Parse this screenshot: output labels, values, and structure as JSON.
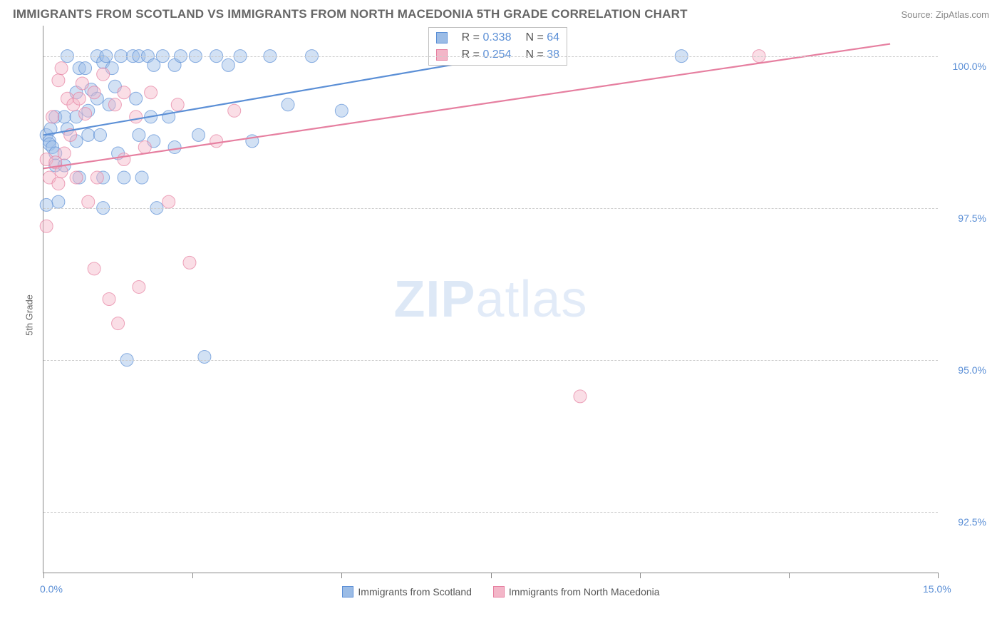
{
  "title": "IMMIGRANTS FROM SCOTLAND VS IMMIGRANTS FROM NORTH MACEDONIA 5TH GRADE CORRELATION CHART",
  "source_prefix": "Source: ",
  "source_name": "ZipAtlas.com",
  "y_axis_label": "5th Grade",
  "watermark_a": "ZIP",
  "watermark_b": "atlas",
  "chart": {
    "type": "scatter",
    "background_color": "#ffffff",
    "grid_color": "#cccccc",
    "axis_color": "#888888",
    "text_muted": "#666666",
    "value_color": "#5b8fd6",
    "xlim": [
      0.0,
      15.0
    ],
    "ylim": [
      91.5,
      100.5
    ],
    "x_ticks": [
      0.0,
      2.5,
      5.0,
      7.5,
      10.0,
      12.5,
      15.0
    ],
    "x_tick_labels_shown": {
      "0": "0.0%",
      "15": "15.0%"
    },
    "y_ticks": [
      92.5,
      95.0,
      97.5,
      100.0
    ],
    "y_tick_labels": [
      "92.5%",
      "95.0%",
      "97.5%",
      "100.0%"
    ],
    "marker_radius": 9,
    "marker_opacity": 0.45,
    "line_width": 2.2,
    "series": [
      {
        "key": "scotland",
        "label": "Immigrants from Scotland",
        "color": "#5b8fd6",
        "fill": "#9bbce6",
        "R": 0.338,
        "N": 64,
        "trend": {
          "x1": 0.0,
          "y1": 98.7,
          "x2": 8.3,
          "y2": 100.1
        },
        "points": [
          [
            0.05,
            98.7
          ],
          [
            0.1,
            98.6
          ],
          [
            0.12,
            98.8
          ],
          [
            0.1,
            98.55
          ],
          [
            0.15,
            98.5
          ],
          [
            0.2,
            99.0
          ],
          [
            0.2,
            98.4
          ],
          [
            0.2,
            98.2
          ],
          [
            0.25,
            97.6
          ],
          [
            0.05,
            97.55
          ],
          [
            0.35,
            99.0
          ],
          [
            0.4,
            100.0
          ],
          [
            0.4,
            98.8
          ],
          [
            0.35,
            98.2
          ],
          [
            0.55,
            99.4
          ],
          [
            0.55,
            99.0
          ],
          [
            0.6,
            98.0
          ],
          [
            0.6,
            99.8
          ],
          [
            0.55,
            98.6
          ],
          [
            0.7,
            99.8
          ],
          [
            0.75,
            99.1
          ],
          [
            0.75,
            98.7
          ],
          [
            0.8,
            99.45
          ],
          [
            0.9,
            100.0
          ],
          [
            0.9,
            99.3
          ],
          [
            0.95,
            98.7
          ],
          [
            1.0,
            99.9
          ],
          [
            1.0,
            98.0
          ],
          [
            1.0,
            97.5
          ],
          [
            1.05,
            100.0
          ],
          [
            1.1,
            99.2
          ],
          [
            1.15,
            99.8
          ],
          [
            1.2,
            99.5
          ],
          [
            1.25,
            98.4
          ],
          [
            1.3,
            100.0
          ],
          [
            1.35,
            98.0
          ],
          [
            1.4,
            95.0
          ],
          [
            1.5,
            100.0
          ],
          [
            1.55,
            99.3
          ],
          [
            1.6,
            100.0
          ],
          [
            1.6,
            98.7
          ],
          [
            1.65,
            98.0
          ],
          [
            1.75,
            100.0
          ],
          [
            1.8,
            99.0
          ],
          [
            1.85,
            99.85
          ],
          [
            1.85,
            98.6
          ],
          [
            1.9,
            97.5
          ],
          [
            2.0,
            100.0
          ],
          [
            2.1,
            99.0
          ],
          [
            2.2,
            99.85
          ],
          [
            2.2,
            98.5
          ],
          [
            2.3,
            100.0
          ],
          [
            2.55,
            100.0
          ],
          [
            2.6,
            98.7
          ],
          [
            2.7,
            95.05
          ],
          [
            2.9,
            100.0
          ],
          [
            3.1,
            99.85
          ],
          [
            3.3,
            100.0
          ],
          [
            3.5,
            98.6
          ],
          [
            3.8,
            100.0
          ],
          [
            4.1,
            99.2
          ],
          [
            4.5,
            100.0
          ],
          [
            5.0,
            99.1
          ],
          [
            10.7,
            100.0
          ]
        ]
      },
      {
        "key": "nmacedonia",
        "label": "Immigrants from North Macedonia",
        "color": "#e67fa0",
        "fill": "#f3b6c8",
        "R": 0.254,
        "N": 38,
        "trend": {
          "x1": 0.0,
          "y1": 98.15,
          "x2": 14.2,
          "y2": 100.2
        },
        "points": [
          [
            0.05,
            98.3
          ],
          [
            0.05,
            97.2
          ],
          [
            0.1,
            98.0
          ],
          [
            0.15,
            99.0
          ],
          [
            0.2,
            98.25
          ],
          [
            0.25,
            97.9
          ],
          [
            0.25,
            99.6
          ],
          [
            0.3,
            98.1
          ],
          [
            0.3,
            99.8
          ],
          [
            0.35,
            98.4
          ],
          [
            0.4,
            99.3
          ],
          [
            0.45,
            98.7
          ],
          [
            0.5,
            99.2
          ],
          [
            0.55,
            98.0
          ],
          [
            0.6,
            99.3
          ],
          [
            0.65,
            99.55
          ],
          [
            0.7,
            99.05
          ],
          [
            0.75,
            97.6
          ],
          [
            0.85,
            99.4
          ],
          [
            0.85,
            96.5
          ],
          [
            0.9,
            98.0
          ],
          [
            1.0,
            99.7
          ],
          [
            1.1,
            96.0
          ],
          [
            1.2,
            99.2
          ],
          [
            1.25,
            95.6
          ],
          [
            1.35,
            99.4
          ],
          [
            1.35,
            98.3
          ],
          [
            1.55,
            99.0
          ],
          [
            1.6,
            96.2
          ],
          [
            1.7,
            98.5
          ],
          [
            1.8,
            99.4
          ],
          [
            2.1,
            97.6
          ],
          [
            2.25,
            99.2
          ],
          [
            2.45,
            96.6
          ],
          [
            2.9,
            98.6
          ],
          [
            3.2,
            99.1
          ],
          [
            9.0,
            94.4
          ],
          [
            12.0,
            100.0
          ]
        ]
      }
    ],
    "legend_box": {
      "row_prefix_R": "R =",
      "row_prefix_N": "N ="
    }
  }
}
